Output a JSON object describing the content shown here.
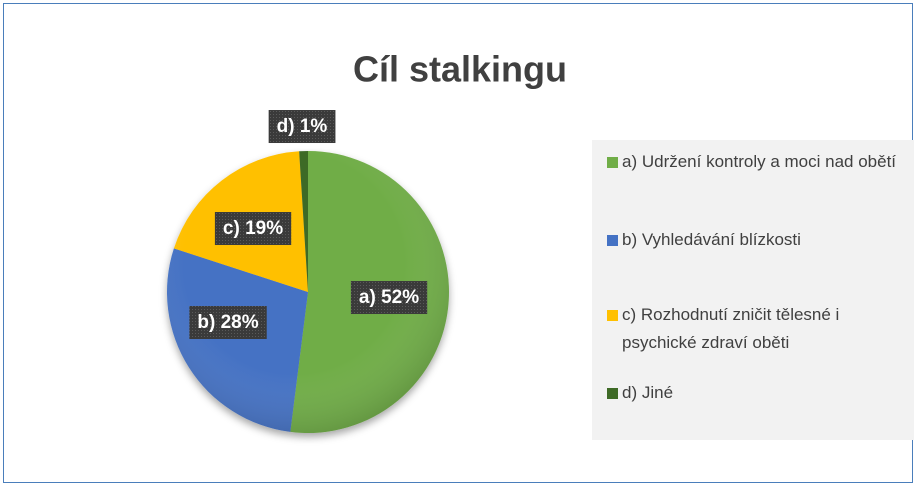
{
  "chart_data": {
    "type": "pie",
    "title": "Cíl stalkingu",
    "categories": [
      "a) Udržení kontroly a moci nad obětí",
      "b) Vyhledávání blízkosti",
      "c) Rozhodnutí zničit tělesné i psychické zdraví oběti",
      "d) Jiné"
    ],
    "values": [
      52,
      28,
      19,
      1
    ],
    "value_labels": [
      "a) 52%",
      "b) 28%",
      "c) 19%",
      "d) 1%"
    ],
    "colors": [
      "#70ad47",
      "#4472c4",
      "#ffc000",
      "#3e6a26"
    ],
    "legend": "right"
  }
}
